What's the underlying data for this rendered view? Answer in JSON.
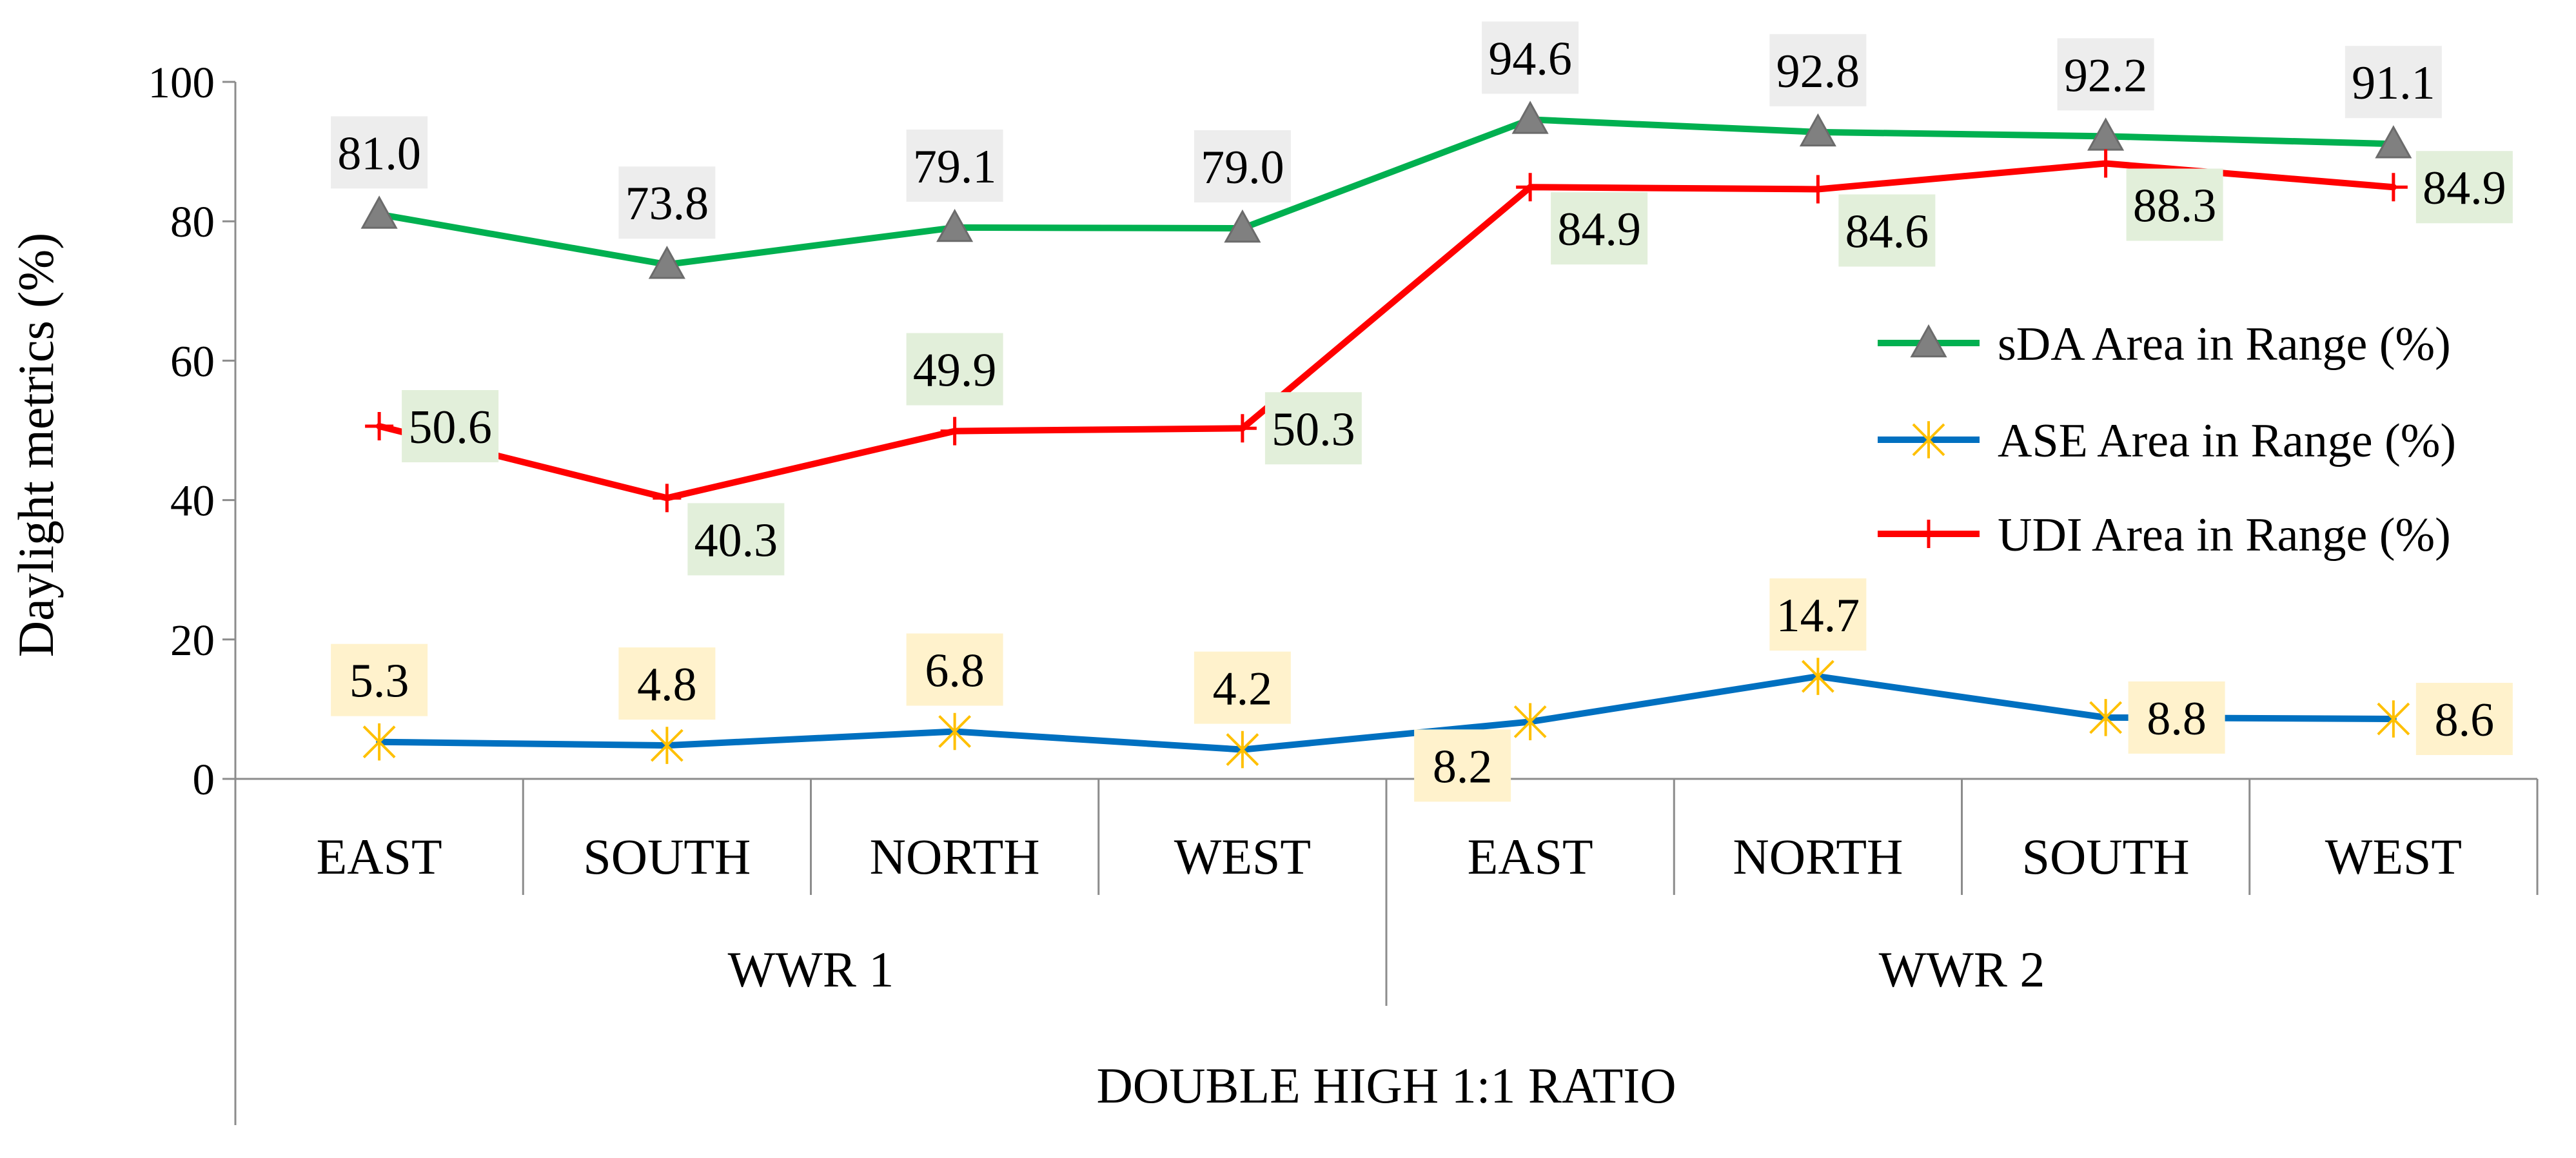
{
  "chart_data": {
    "type": "line",
    "ylabel": "Daylight metrics (%)",
    "ylim": [
      0,
      100
    ],
    "yticks": [
      0,
      20,
      40,
      60,
      80,
      100
    ],
    "categories": [
      "EAST",
      "SOUTH",
      "NORTH",
      "WEST",
      "EAST",
      "NORTH",
      "SOUTH",
      "WEST"
    ],
    "groups": [
      {
        "label": "WWR 1",
        "count": 4
      },
      {
        "label": "WWR 2",
        "count": 4
      }
    ],
    "supergroup": "DOUBLE HIGH 1:1 RATIO",
    "legend_position": "right",
    "series": [
      {
        "name": "sDA Area in Range (%)",
        "color": "#00b050",
        "marker": "triangle",
        "values": [
          81.0,
          73.8,
          79.1,
          79.0,
          94.6,
          92.8,
          92.2,
          91.1
        ],
        "labels": [
          "81.0",
          "73.8",
          "79.1",
          "79.0",
          "94.6",
          "92.8",
          "92.2",
          "91.1"
        ],
        "label_bg": "#ededed",
        "label_pos": [
          "above",
          "above",
          "above",
          "above",
          "above",
          "above",
          "above",
          "above"
        ]
      },
      {
        "name": "ASE Area in Range (%)",
        "color": "#0070c0",
        "marker": "star",
        "values": [
          5.3,
          4.8,
          6.8,
          4.2,
          8.2,
          14.7,
          8.8,
          8.6
        ],
        "labels": [
          "5.3",
          "4.8",
          "6.8",
          "4.2",
          "8.2",
          "14.7",
          "8.8",
          "8.6"
        ],
        "label_bg": "#fff2cc",
        "label_pos": [
          "above",
          "above",
          "above",
          "above",
          "below-left",
          "above",
          "right",
          "right"
        ]
      },
      {
        "name": "UDI Area in Range (%)",
        "color": "#ff0000",
        "marker": "plus",
        "values": [
          50.6,
          40.3,
          49.9,
          50.3,
          84.9,
          84.6,
          88.3,
          84.9
        ],
        "labels": [
          "50.6",
          "40.3",
          "49.9",
          "50.3",
          "84.9",
          "84.6",
          "88.3",
          "84.9"
        ],
        "label_bg": "#e2efda",
        "label_pos": [
          "right",
          "below-right",
          "above",
          "right",
          "below-right",
          "below-right",
          "below-right",
          "right"
        ]
      }
    ]
  }
}
